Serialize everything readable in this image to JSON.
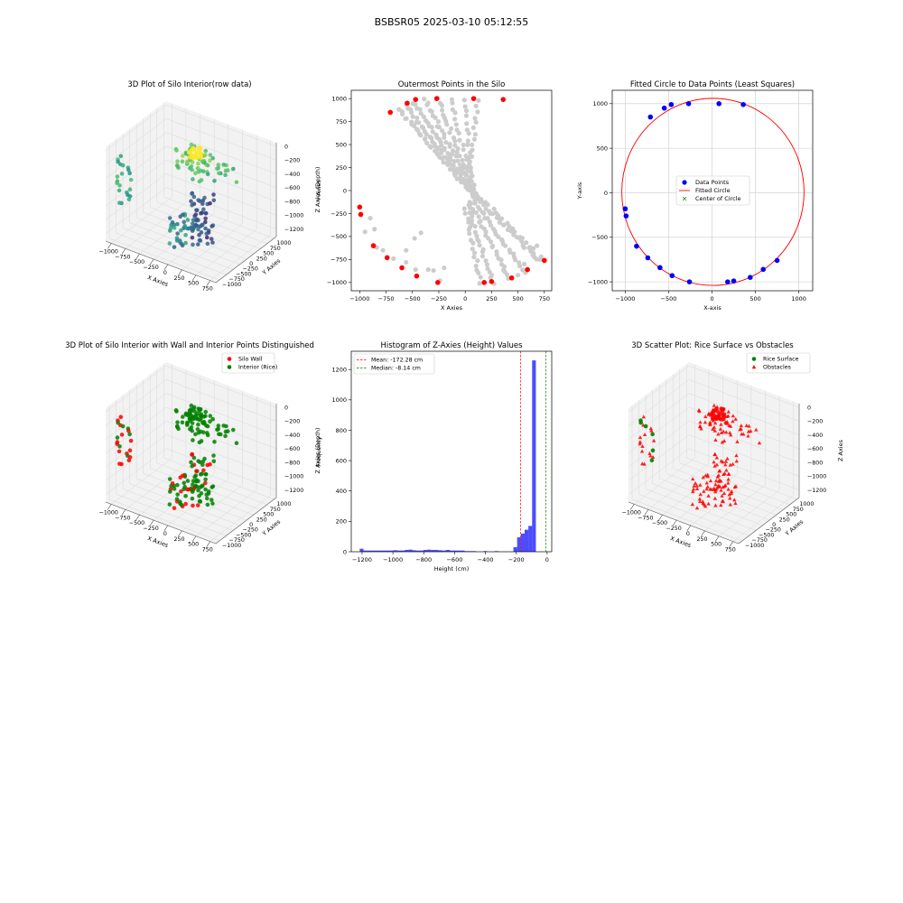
{
  "figure": {
    "suptitle": "BSBSR05 2025-03-10 05:12:55"
  },
  "chart_data": [
    {
      "id": "raw3d",
      "type": "scatter",
      "projection": "3d",
      "title": "3D Plot of Silo Interior(row data)",
      "xlabel": "X Axies",
      "ylabel": "Y Axies",
      "zlabel": "Z Axies (Depth)",
      "xlim": [
        -1000,
        800
      ],
      "ylim": [
        -1000,
        1000
      ],
      "zlim": [
        -1300,
        0
      ],
      "xticks": [
        "-1000",
        "-750",
        "-500",
        "-250",
        "0",
        "250",
        "500",
        "750"
      ],
      "yticks": [
        "-1000",
        "-750",
        "-500",
        "-250",
        "0",
        "250",
        "500",
        "750",
        "1000"
      ],
      "zticks": [
        "0",
        "-200",
        "-400",
        "-600",
        "-800",
        "-1000",
        "-1200"
      ],
      "colormap": "viridis (by depth)",
      "grid": true
    },
    {
      "id": "outer",
      "type": "scatter",
      "title": "Outermost Points in the Silo",
      "xlabel": "X Axies",
      "ylabel": "Y Axies",
      "xlim": [
        -1080,
        820
      ],
      "ylim": [
        -1090,
        1090
      ],
      "xticks": [
        -1000,
        -750,
        -500,
        -250,
        0,
        250,
        500,
        750
      ],
      "yticks": [
        -1000,
        -750,
        -500,
        -250,
        0,
        250,
        500,
        750,
        1000
      ],
      "grid": false,
      "series": [
        {
          "color": "#cccccc",
          "role": "all points"
        },
        {
          "color": "#ff0000",
          "role": "outermost points",
          "x": [
            -1000,
            -990,
            -870,
            -740,
            -710,
            -600,
            -550,
            -470,
            -270,
            80,
            360,
            -460,
            -260,
            180,
            250,
            440,
            590,
            750
          ],
          "y": [
            -180,
            -260,
            -600,
            -730,
            850,
            -840,
            950,
            990,
            1000,
            1000,
            990,
            -930,
            -1000,
            -1000,
            -990,
            -950,
            -860,
            -760
          ]
        }
      ]
    },
    {
      "id": "circle",
      "type": "scatter",
      "title": "Fitted Circle to Data Points (Least Squares)",
      "xlabel": "X-axis",
      "ylabel": "Y-axis",
      "xlim": [
        -1150,
        1160
      ],
      "ylim": [
        -1100,
        1150
      ],
      "xticks": [
        -1000,
        -500,
        0,
        500,
        1000
      ],
      "yticks": [
        -1000,
        -500,
        0,
        500,
        1000
      ],
      "grid": true,
      "legend": {
        "position": "center",
        "labels": [
          "Data Points",
          "Fitted Circle",
          "Center of Circle"
        ]
      },
      "points": {
        "color": "#0000ff",
        "x": [
          -1000,
          -990,
          -870,
          -740,
          -710,
          -600,
          -550,
          -470,
          -270,
          80,
          360,
          -460,
          -260,
          180,
          250,
          440,
          590,
          750
        ],
        "y": [
          -180,
          -260,
          -600,
          -730,
          850,
          -840,
          950,
          990,
          1000,
          1000,
          990,
          -930,
          -1000,
          -1000,
          -990,
          -950,
          -860,
          -760
        ]
      },
      "fit": {
        "center": [
          10,
          10
        ],
        "radius": 1050,
        "color": "#ff0000"
      },
      "center_marker_color": "#008000"
    },
    {
      "id": "wall3d",
      "type": "scatter",
      "projection": "3d",
      "title": "3D Plot of Silo Interior with Wall and Interior Points Distinguished",
      "xlabel": "X Axies",
      "ylabel": "Y Axies",
      "zlabel": "Z Axies (Depth)",
      "xlim": [
        -1000,
        800
      ],
      "ylim": [
        -1000,
        1000
      ],
      "zlim": [
        -1300,
        0
      ],
      "xticks": [
        "-1000",
        "-750",
        "-500",
        "-250",
        "0",
        "250",
        "500",
        "750"
      ],
      "yticks": [
        "-1000",
        "-750",
        "-500",
        "-250",
        "0",
        "250",
        "500",
        "750",
        "1000"
      ],
      "zticks": [
        "0",
        "-200",
        "-400",
        "-600",
        "-800",
        "-1000",
        "-1200"
      ],
      "legend": {
        "position": "top-right",
        "labels": [
          "Silo Wall",
          "Interior (Rice)"
        ]
      },
      "colors": {
        "wall": "#ff0000",
        "interior": "#008000"
      },
      "grid": true
    },
    {
      "id": "hist",
      "type": "bar",
      "title": "Histogram of Z-Axies (Height) Values",
      "xlabel": "Height (cm)",
      "ylabel": "Frequency",
      "xlim": [
        -1270,
        30
      ],
      "ylim": [
        0,
        1320
      ],
      "xticks": [
        -1200,
        -1000,
        -800,
        -600,
        -400,
        -200,
        0
      ],
      "yticks": [
        0,
        200,
        400,
        600,
        800,
        1000,
        1200
      ],
      "bin_start": -1215,
      "bin_width": 24.3,
      "values": [
        20,
        8,
        8,
        8,
        8,
        8,
        8,
        8,
        8,
        10,
        8,
        8,
        12,
        14,
        10,
        8,
        8,
        12,
        14,
        12,
        12,
        10,
        8,
        12,
        8,
        8,
        8,
        8,
        4,
        4,
        4,
        0,
        0,
        4,
        0,
        0,
        4,
        0,
        0,
        0,
        0,
        30,
        95,
        120,
        145,
        170,
        1260
      ],
      "bar_color": "#0000ff",
      "mean_label": "Mean: -172.28 cm",
      "median_label": "Median: -8.14 cm",
      "mean": -172.28,
      "median": -8.14,
      "legend": {
        "position": "top-left"
      },
      "grid": false
    },
    {
      "id": "surf3d",
      "type": "scatter",
      "projection": "3d",
      "title": "3D Scatter Plot: Rice Surface vs Obstacles",
      "xlabel": "X Axies",
      "ylabel": "Y Axies",
      "zlabel": "Z Axies",
      "xlim": [
        -1000,
        800
      ],
      "ylim": [
        -1000,
        1000
      ],
      "zlim": [
        -1300,
        0
      ],
      "xticks": [
        "-1000",
        "-750",
        "-500",
        "-250",
        "0",
        "250",
        "500",
        "750"
      ],
      "yticks": [
        "-1000",
        "-750",
        "-500",
        "-250",
        "0",
        "250",
        "500",
        "750",
        "1000"
      ],
      "zticks": [
        "0",
        "-200",
        "-400",
        "-600",
        "-800",
        "-1000",
        "-1200"
      ],
      "legend": {
        "position": "top-right",
        "labels": [
          "Rice Surface",
          "Obstacles"
        ]
      },
      "colors": {
        "surface": "#008000",
        "obstacles": "#ff0000"
      },
      "grid": true
    }
  ]
}
